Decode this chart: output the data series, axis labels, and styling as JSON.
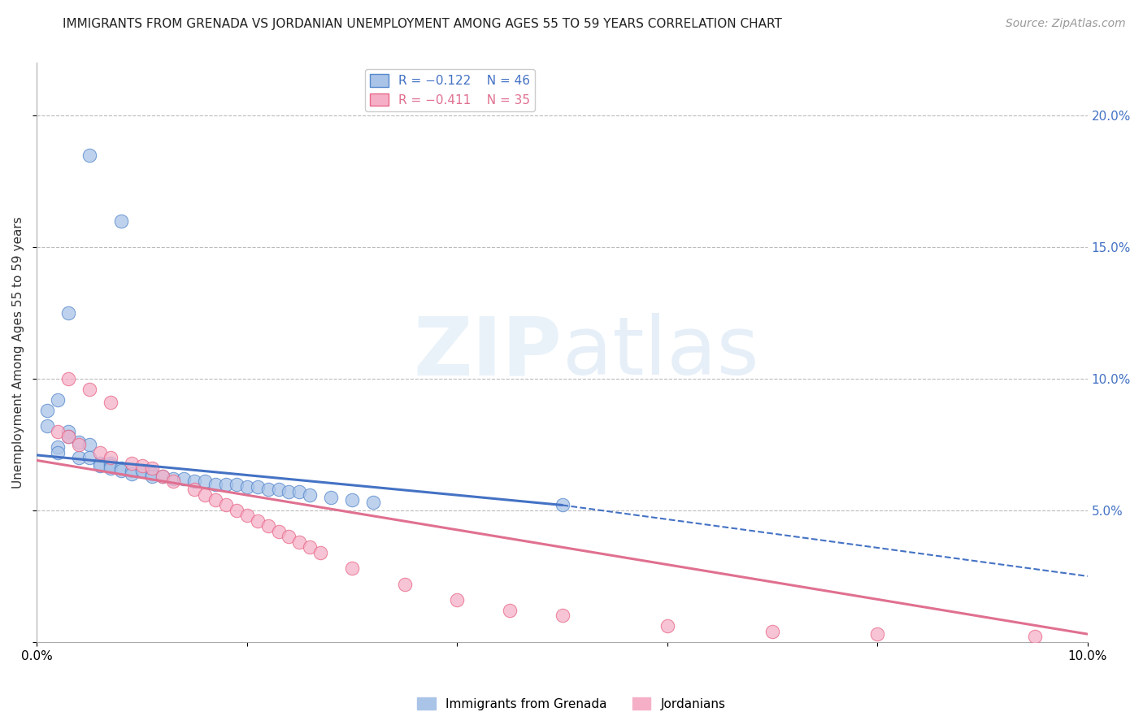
{
  "title": "IMMIGRANTS FROM GRENADA VS JORDANIAN UNEMPLOYMENT AMONG AGES 55 TO 59 YEARS CORRELATION CHART",
  "source": "Source: ZipAtlas.com",
  "ylabel": "Unemployment Among Ages 55 to 59 years",
  "legend_label1": "Immigrants from Grenada",
  "legend_label2": "Jordanians",
  "legend_r1": "R = −0.122",
  "legend_n1": "N = 46",
  "legend_r2": "R = −0.411",
  "legend_n2": "N = 35",
  "xlim": [
    0.0,
    0.1
  ],
  "ylim": [
    0.0,
    0.22
  ],
  "yticks_right": [
    0.05,
    0.1,
    0.15,
    0.2
  ],
  "ytick_labels_right": [
    "5.0%",
    "10.0%",
    "15.0%",
    "20.0%"
  ],
  "xtick_vals": [
    0.0,
    0.02,
    0.04,
    0.06,
    0.08,
    0.1
  ],
  "xtick_labels": [
    "0.0%",
    "",
    "",
    "",
    "",
    "10.0%"
  ],
  "color_blue_fill": "#aac4e8",
  "color_pink_fill": "#f5b0c8",
  "color_blue_edge": "#5588cc",
  "color_pink_edge": "#e86888",
  "color_blue_line": "#4472c4",
  "color_pink_line": "#e07090",
  "color_right_axis": "#4472c4",
  "watermark_zip": "ZIP",
  "watermark_atlas": "atlas",
  "blue_x": [
    0.005,
    0.008,
    0.003,
    0.002,
    0.001,
    0.001,
    0.003,
    0.003,
    0.004,
    0.005,
    0.002,
    0.002,
    0.004,
    0.005,
    0.006,
    0.006,
    0.007,
    0.007,
    0.007,
    0.008,
    0.008,
    0.009,
    0.009,
    0.01,
    0.01,
    0.011,
    0.011,
    0.012,
    0.013,
    0.014,
    0.015,
    0.016,
    0.017,
    0.018,
    0.019,
    0.02,
    0.021,
    0.022,
    0.023,
    0.024,
    0.025,
    0.026,
    0.028,
    0.03,
    0.032,
    0.05
  ],
  "blue_y": [
    0.185,
    0.16,
    0.125,
    0.092,
    0.088,
    0.082,
    0.08,
    0.078,
    0.076,
    0.075,
    0.074,
    0.072,
    0.07,
    0.07,
    0.068,
    0.067,
    0.068,
    0.067,
    0.066,
    0.066,
    0.065,
    0.065,
    0.064,
    0.065,
    0.065,
    0.064,
    0.063,
    0.063,
    0.062,
    0.062,
    0.061,
    0.061,
    0.06,
    0.06,
    0.06,
    0.059,
    0.059,
    0.058,
    0.058,
    0.057,
    0.057,
    0.056,
    0.055,
    0.054,
    0.053,
    0.052
  ],
  "pink_x": [
    0.003,
    0.005,
    0.007,
    0.002,
    0.003,
    0.004,
    0.006,
    0.007,
    0.009,
    0.01,
    0.011,
    0.012,
    0.013,
    0.015,
    0.016,
    0.017,
    0.018,
    0.019,
    0.02,
    0.021,
    0.022,
    0.023,
    0.024,
    0.025,
    0.026,
    0.027,
    0.03,
    0.035,
    0.04,
    0.045,
    0.05,
    0.06,
    0.07,
    0.08,
    0.095
  ],
  "pink_y": [
    0.1,
    0.096,
    0.091,
    0.08,
    0.078,
    0.075,
    0.072,
    0.07,
    0.068,
    0.067,
    0.066,
    0.063,
    0.061,
    0.058,
    0.056,
    0.054,
    0.052,
    0.05,
    0.048,
    0.046,
    0.044,
    0.042,
    0.04,
    0.038,
    0.036,
    0.034,
    0.028,
    0.022,
    0.016,
    0.012,
    0.01,
    0.006,
    0.004,
    0.003,
    0.002
  ],
  "title_fontsize": 11,
  "source_fontsize": 10,
  "ylabel_fontsize": 11,
  "tick_fontsize": 11,
  "legend_fontsize": 11
}
